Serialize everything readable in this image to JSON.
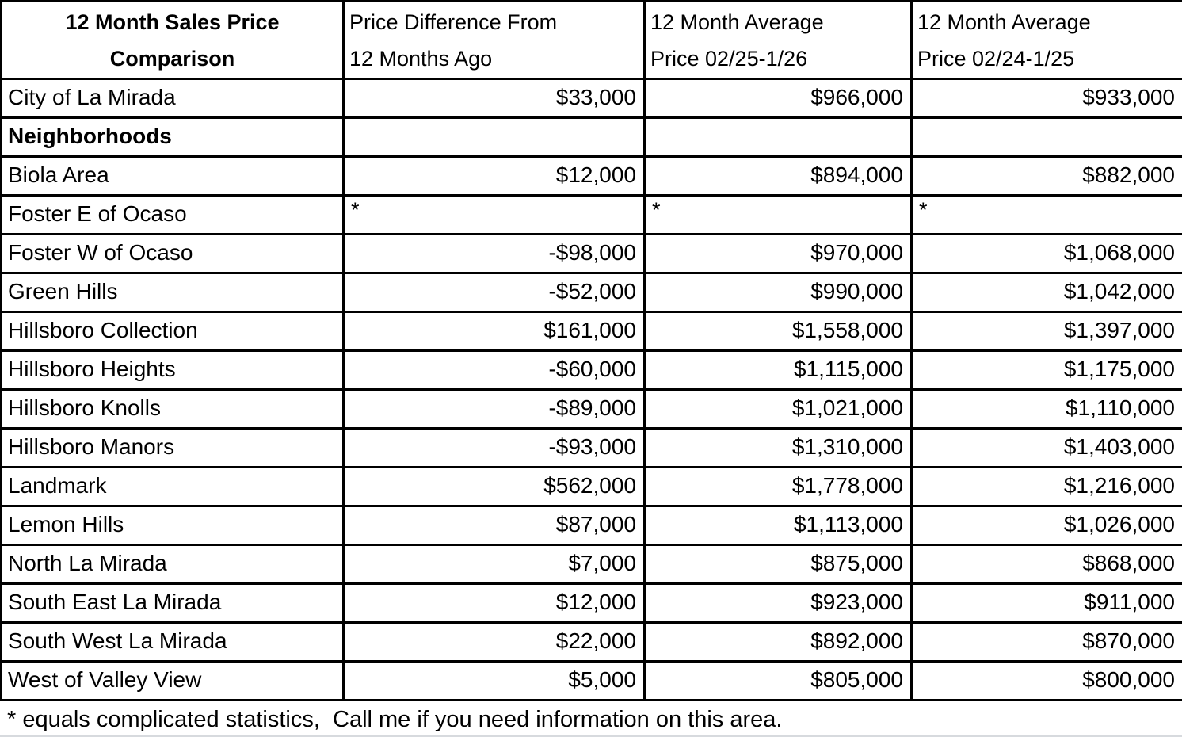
{
  "table": {
    "header": {
      "col1": {
        "line1": "12 Month Sales Price",
        "line2": "Comparison"
      },
      "col2": {
        "line1": "Price Difference From",
        "line2": "12 Months Ago"
      },
      "col3": {
        "line1": "12 Month Average",
        "line2": "Price 02/25-1/26"
      },
      "col4": {
        "line1": "12 Month Average",
        "line2": "Price 02/24-1/25"
      }
    },
    "rows": [
      {
        "name": "City of La Mirada",
        "diff": "$33,000",
        "avg_new": "$966,000",
        "avg_old": "$933,000"
      },
      {
        "name": "Neighborhoods",
        "diff": "",
        "avg_new": "",
        "avg_old": ""
      },
      {
        "name": "Biola Area",
        "diff": "$12,000",
        "avg_new": "$894,000",
        "avg_old": "$882,000"
      },
      {
        "name": "Foster E of Ocaso",
        "diff": "*",
        "avg_new": "*",
        "avg_old": "*"
      },
      {
        "name": "Foster W of Ocaso",
        "diff": "-$98,000",
        "avg_new": "$970,000",
        "avg_old": "$1,068,000"
      },
      {
        "name": "Green Hills",
        "diff": "-$52,000",
        "avg_new": "$990,000",
        "avg_old": "$1,042,000"
      },
      {
        "name": "Hillsboro Collection",
        "diff": "$161,000",
        "avg_new": "$1,558,000",
        "avg_old": "$1,397,000"
      },
      {
        "name": "Hillsboro Heights",
        "diff": "-$60,000",
        "avg_new": "$1,115,000",
        "avg_old": "$1,175,000"
      },
      {
        "name": "Hillsboro Knolls",
        "diff": "-$89,000",
        "avg_new": "$1,021,000",
        "avg_old": "$1,110,000"
      },
      {
        "name": "Hillsboro Manors",
        "diff": "-$93,000",
        "avg_new": "$1,310,000",
        "avg_old": "$1,403,000"
      },
      {
        "name": "Landmark",
        "diff": "$562,000",
        "avg_new": "$1,778,000",
        "avg_old": "$1,216,000"
      },
      {
        "name": "Lemon Hills",
        "diff": "$87,000",
        "avg_new": "$1,113,000",
        "avg_old": "$1,026,000"
      },
      {
        "name": "North La Mirada",
        "diff": "$7,000",
        "avg_new": "$875,000",
        "avg_old": "$868,000"
      },
      {
        "name": "South East La Mirada",
        "diff": "$12,000",
        "avg_new": "$923,000",
        "avg_old": "$911,000"
      },
      {
        "name": "South West La Mirada",
        "diff": "$22,000",
        "avg_new": "$892,000",
        "avg_old": "$870,000"
      },
      {
        "name": "West of Valley View",
        "diff": "$5,000",
        "avg_new": "$805,000",
        "avg_old": "$800,000"
      }
    ],
    "footnote": "* equals complicated statistics,  Call me if you need information on this area."
  },
  "chart_data": {
    "type": "table",
    "title": "12 Month Sales Price Comparison",
    "columns": [
      "12 Month Sales Price Comparison",
      "Price Difference From 12 Months Ago",
      "12 Month Average Price 02/25-1/26",
      "12 Month Average Price 02/24-1/25"
    ],
    "rows": [
      {
        "area": "City of La Mirada",
        "section": "city",
        "price_difference": 33000,
        "avg_price_0225_0126": 966000,
        "avg_price_0224_0125": 933000
      },
      {
        "area": "Neighborhoods",
        "section": "section-header",
        "price_difference": null,
        "avg_price_0225_0126": null,
        "avg_price_0224_0125": null
      },
      {
        "area": "Biola Area",
        "section": "neighborhood",
        "price_difference": 12000,
        "avg_price_0225_0126": 894000,
        "avg_price_0224_0125": 882000
      },
      {
        "area": "Foster E of Ocaso",
        "section": "neighborhood",
        "price_difference": null,
        "avg_price_0225_0126": null,
        "avg_price_0224_0125": null,
        "note": "*"
      },
      {
        "area": "Foster W of Ocaso",
        "section": "neighborhood",
        "price_difference": -98000,
        "avg_price_0225_0126": 970000,
        "avg_price_0224_0125": 1068000
      },
      {
        "area": "Green Hills",
        "section": "neighborhood",
        "price_difference": -52000,
        "avg_price_0225_0126": 990000,
        "avg_price_0224_0125": 1042000
      },
      {
        "area": "Hillsboro Collection",
        "section": "neighborhood",
        "price_difference": 161000,
        "avg_price_0225_0126": 1558000,
        "avg_price_0224_0125": 1397000
      },
      {
        "area": "Hillsboro Heights",
        "section": "neighborhood",
        "price_difference": -60000,
        "avg_price_0225_0126": 1115000,
        "avg_price_0224_0125": 1175000
      },
      {
        "area": "Hillsboro Knolls",
        "section": "neighborhood",
        "price_difference": -89000,
        "avg_price_0225_0126": 1021000,
        "avg_price_0224_0125": 1110000
      },
      {
        "area": "Hillsboro Manors",
        "section": "neighborhood",
        "price_difference": -93000,
        "avg_price_0225_0126": 1310000,
        "avg_price_0224_0125": 1403000
      },
      {
        "area": "Landmark",
        "section": "neighborhood",
        "price_difference": 562000,
        "avg_price_0225_0126": 1778000,
        "avg_price_0224_0125": 1216000
      },
      {
        "area": "Lemon Hills",
        "section": "neighborhood",
        "price_difference": 87000,
        "avg_price_0225_0126": 1113000,
        "avg_price_0224_0125": 1026000
      },
      {
        "area": "North La Mirada",
        "section": "neighborhood",
        "price_difference": 7000,
        "avg_price_0225_0126": 875000,
        "avg_price_0224_0125": 868000
      },
      {
        "area": "South East La Mirada",
        "section": "neighborhood",
        "price_difference": 12000,
        "avg_price_0225_0126": 923000,
        "avg_price_0224_0125": 911000
      },
      {
        "area": "South West La Mirada",
        "section": "neighborhood",
        "price_difference": 22000,
        "avg_price_0225_0126": 892000,
        "avg_price_0224_0125": 870000
      },
      {
        "area": "West of Valley View",
        "section": "neighborhood",
        "price_difference": 5000,
        "avg_price_0225_0126": 805000,
        "avg_price_0224_0125": 800000
      }
    ],
    "footnote": "* equals complicated statistics,  Call me if you need information on this area."
  }
}
